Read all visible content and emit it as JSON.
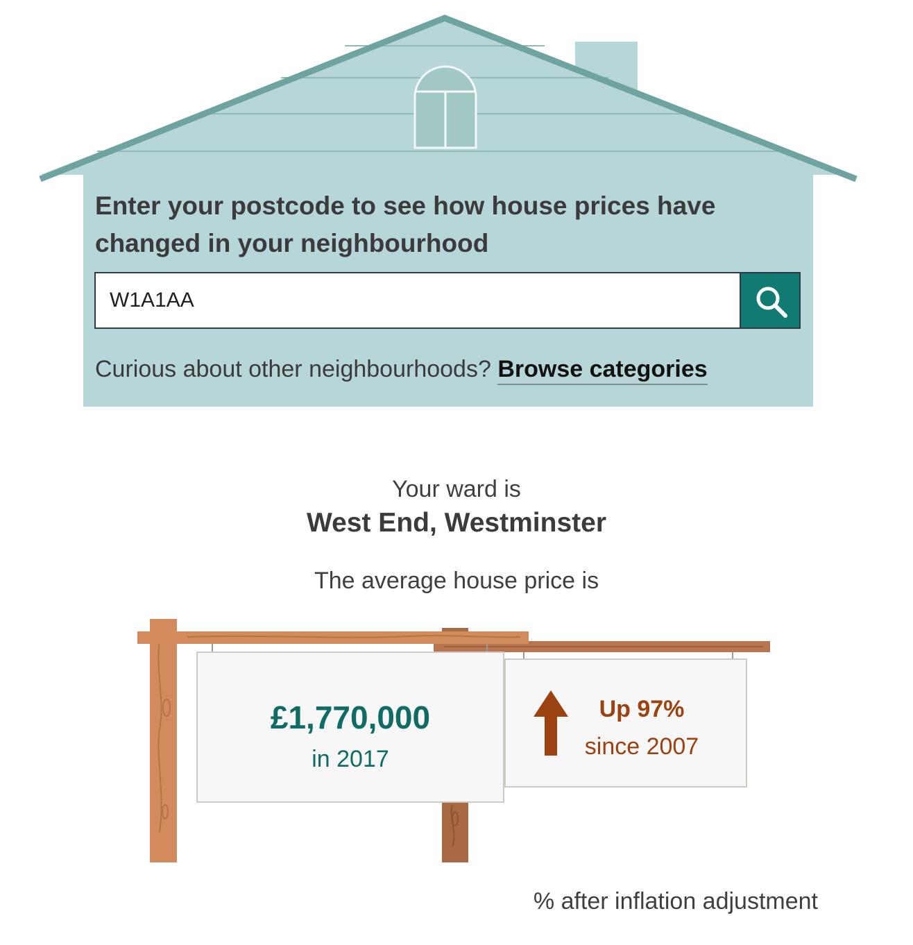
{
  "search": {
    "prompt": "Enter your postcode to see how house prices have changed in your neighbourhood",
    "postcode_value": "W1A1AA",
    "button_icon": "search-icon",
    "browse_text": "Curious about other neighbourhoods?",
    "browse_link": "Browse categories"
  },
  "result": {
    "ward_intro": "Your ward is",
    "ward_name": "West End, Westminster",
    "price_intro": "The average house price is",
    "price": "£1,770,000",
    "price_year": "in 2017",
    "change": "Up 97%",
    "change_since": "since 2007",
    "change_icon": "arrow-up-icon",
    "footnote": "% after inflation adjustment"
  },
  "colors": {
    "panel": "#b7d6d7",
    "roof": "#6fa3a0",
    "accent_teal": "#117b73",
    "price_text": "#0f6b64",
    "change_text": "#9b4210",
    "wood": "#d38a5c",
    "wood_dark": "#a96a43"
  }
}
